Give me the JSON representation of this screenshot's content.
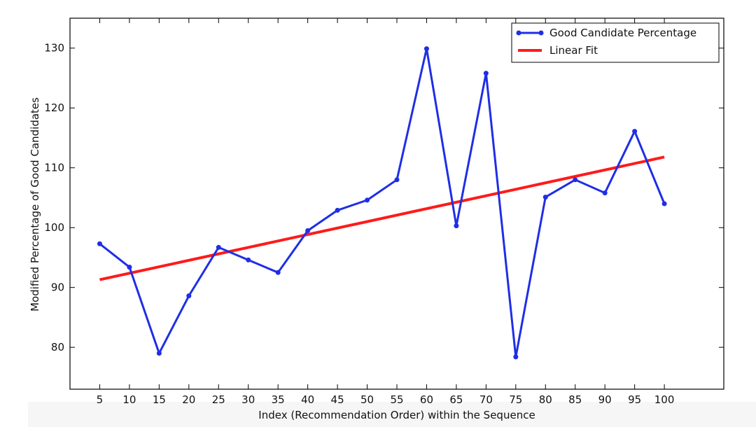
{
  "chart_data": {
    "type": "line",
    "title": "",
    "xlabel": "Index (Recommendation Order) within the Sequence",
    "ylabel": "Modified Percentage of Good Candidates",
    "x": [
      5,
      10,
      15,
      20,
      25,
      30,
      35,
      40,
      45,
      50,
      55,
      60,
      65,
      70,
      75,
      80,
      85,
      90,
      95,
      100
    ],
    "x_ticks": [
      5,
      10,
      15,
      20,
      25,
      30,
      35,
      40,
      45,
      50,
      55,
      60,
      65,
      70,
      75,
      80,
      85,
      90,
      95,
      100
    ],
    "y_ticks": [
      80,
      90,
      100,
      110,
      120,
      130
    ],
    "xlim": [
      0,
      110
    ],
    "ylim": [
      73,
      135
    ],
    "grid": false,
    "legend": "top-right",
    "series": [
      {
        "name": "Good Candidate Percentage",
        "color": "#1f2ee6",
        "marker": "circle",
        "values": [
          97.3,
          93.4,
          79.0,
          88.6,
          96.7,
          94.6,
          92.5,
          99.5,
          102.9,
          104.6,
          108.0,
          129.9,
          100.3,
          125.8,
          78.4,
          105.1,
          108.0,
          105.8,
          116.1,
          104.0
        ]
      },
      {
        "name": "Linear Fit",
        "color": "#ff1a1a",
        "line_x": [
          5,
          100
        ],
        "line_y": [
          91.3,
          111.8
        ]
      }
    ]
  }
}
